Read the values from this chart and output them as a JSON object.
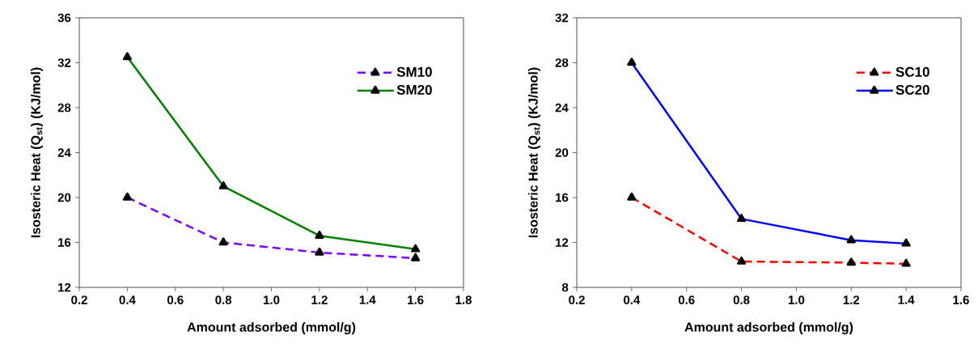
{
  "chart_data": [
    {
      "type": "line",
      "xlabel": "Amount adsorbed (mmol/g)",
      "ylabel": "Isosteric Heat (Q$_{st}$) (KJ/mol)",
      "x": [
        0.4,
        0.8,
        1.2,
        1.6
      ],
      "series": [
        {
          "name": "SM10",
          "color": "#8000ff",
          "values": [
            20.0,
            16.0,
            15.1,
            14.6
          ],
          "line_style": "dashed"
        },
        {
          "name": "SM20",
          "color": "#008000",
          "values": [
            32.5,
            21.0,
            16.6,
            15.4
          ],
          "line_style": "solid"
        }
      ],
      "xlim": [
        0.2,
        1.8
      ],
      "xticks": [
        {
          "value": 0.2,
          "label": "0.2"
        },
        {
          "value": 0.4,
          "label": "0.4"
        },
        {
          "value": 0.6,
          "label": "0.6"
        },
        {
          "value": 0.8,
          "label": "0.8"
        },
        {
          "value": 1.0,
          "label": "1.0"
        },
        {
          "value": 1.2,
          "label": "1.2"
        },
        {
          "value": 1.4,
          "label": "1.4"
        },
        {
          "value": 1.6,
          "label": "1.6"
        },
        {
          "value": 1.8,
          "label": "1.8"
        }
      ],
      "ylim": [
        12,
        36
      ],
      "yticks": [
        12,
        16,
        20,
        24,
        28,
        32,
        36
      ],
      "marker": "triangle",
      "legend": "top right",
      "grid": false
    },
    {
      "type": "line",
      "xlabel": "Amount adsorbed (mmol/g)",
      "ylabel": "Isosteric Heat (Q$_{st}$) (KJ/mol)",
      "x": [
        0.4,
        0.8,
        1.2,
        1.4
      ],
      "series": [
        {
          "name": "SC10",
          "color": "#ff0000",
          "values": [
            16.0,
            10.3,
            10.2,
            10.1
          ],
          "line_style": "dashed"
        },
        {
          "name": "SC20",
          "color": "#0000ff",
          "values": [
            28.0,
            14.1,
            12.2,
            11.9
          ],
          "line_style": "solid"
        }
      ],
      "xlim": [
        0.2,
        1.6
      ],
      "xticks": [
        {
          "value": 0.2,
          "label": "0.2"
        },
        {
          "value": 0.4,
          "label": "0.4"
        },
        {
          "value": 0.6,
          "label": "0.6"
        },
        {
          "value": 0.8,
          "label": "0.8"
        },
        {
          "value": 1.0,
          "label": "1.0"
        },
        {
          "value": 1.2,
          "label": "1.2"
        },
        {
          "value": 1.4,
          "label": "1.4"
        },
        {
          "value": 1.6,
          "label": "1.6"
        }
      ],
      "ylim": [
        8,
        32
      ],
      "yticks": [
        8,
        12,
        16,
        20,
        24,
        28,
        32
      ],
      "marker": "triangle",
      "legend": "top right",
      "grid": false
    }
  ]
}
